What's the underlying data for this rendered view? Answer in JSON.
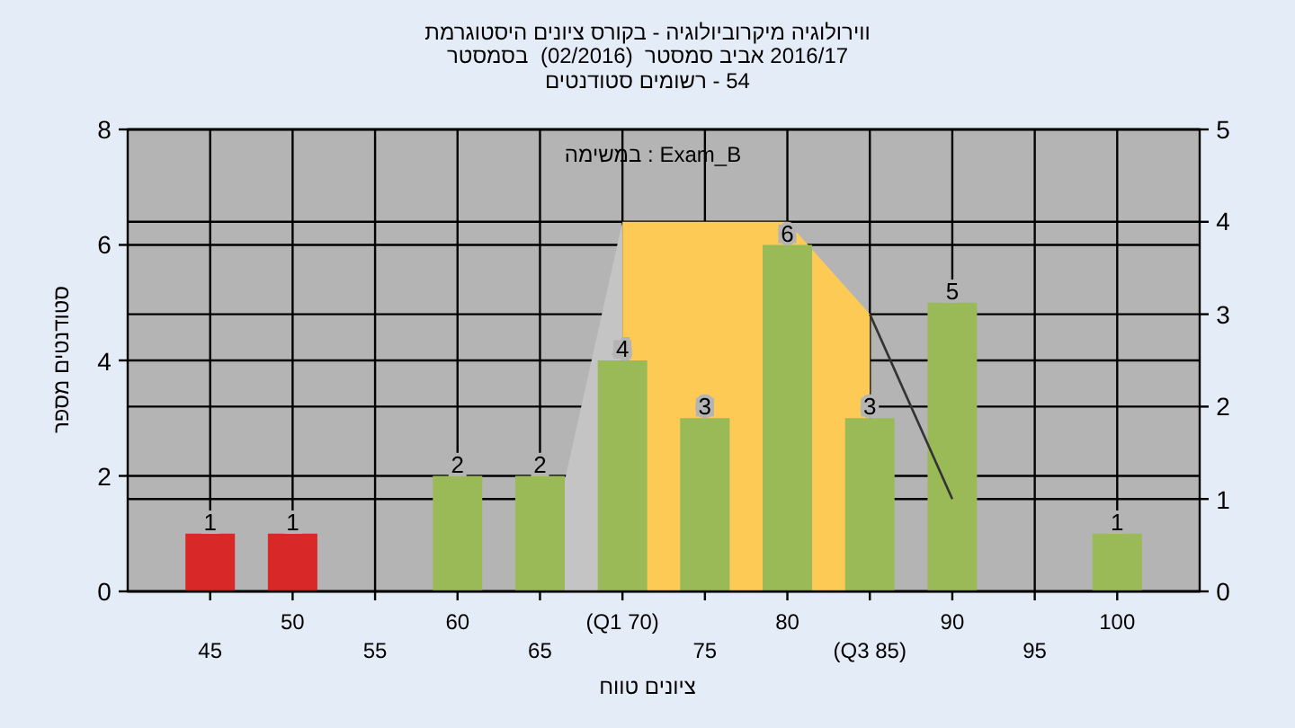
{
  "chart_data": {
    "type": "bar",
    "title": "היסטוגרמת ציונים בקורס - מיקרוביולוגיה ווירולוגיה",
    "subtitle": "בסמסטר  (02/2016)  סמסטר אביב 2016/17",
    "annotations": [
      "סטודנטים רשומים - 54",
      "במשימה : Exam_B"
    ],
    "xlabel": "טווח ציונים",
    "ylabel": "מספר סטודנטים",
    "categories": [
      "45",
      "50",
      "55",
      "60",
      "65",
      "(Q1 70)",
      "75",
      "80",
      "(Q3 85)",
      "90",
      "95",
      "100"
    ],
    "series": [
      {
        "type": "area",
        "axis": "y2",
        "color": "#c4c4c4",
        "values": [
          null,
          null,
          null,
          null,
          0,
          4,
          null,
          null,
          null,
          null,
          null,
          null
        ]
      },
      {
        "type": "area",
        "axis": "y2",
        "color": "#fdca55",
        "values": [
          null,
          null,
          null,
          null,
          null,
          4,
          4,
          4,
          3,
          null,
          null,
          null
        ]
      },
      {
        "values": [
          1,
          1,
          null,
          2,
          2,
          4,
          3,
          6,
          3,
          5,
          null,
          1
        ],
        "value_labels": [
          "1",
          "1",
          null,
          "2",
          "2",
          "4",
          "3",
          "6",
          "3",
          "5",
          null,
          "1"
        ],
        "colors": [
          "#d82828",
          "#d82828",
          null,
          "#9ab957",
          "#9ab957",
          "#9ab957",
          "#9ab957",
          "#9ab957",
          "#9ab957",
          "#9ab957",
          null,
          "#9ab957"
        ]
      },
      {
        "type": "line",
        "axis": "y2",
        "color": "#333333",
        "values": [
          null,
          null,
          null,
          null,
          null,
          null,
          null,
          null,
          3,
          1,
          null,
          null
        ]
      }
    ],
    "grid": true,
    "ylim": [
      0,
      8
    ],
    "yticks": [
      0,
      2,
      4,
      6,
      8
    ],
    "y2lim": [
      0,
      5
    ],
    "y2ticks": [
      0,
      1,
      2,
      3,
      4,
      5
    ]
  }
}
